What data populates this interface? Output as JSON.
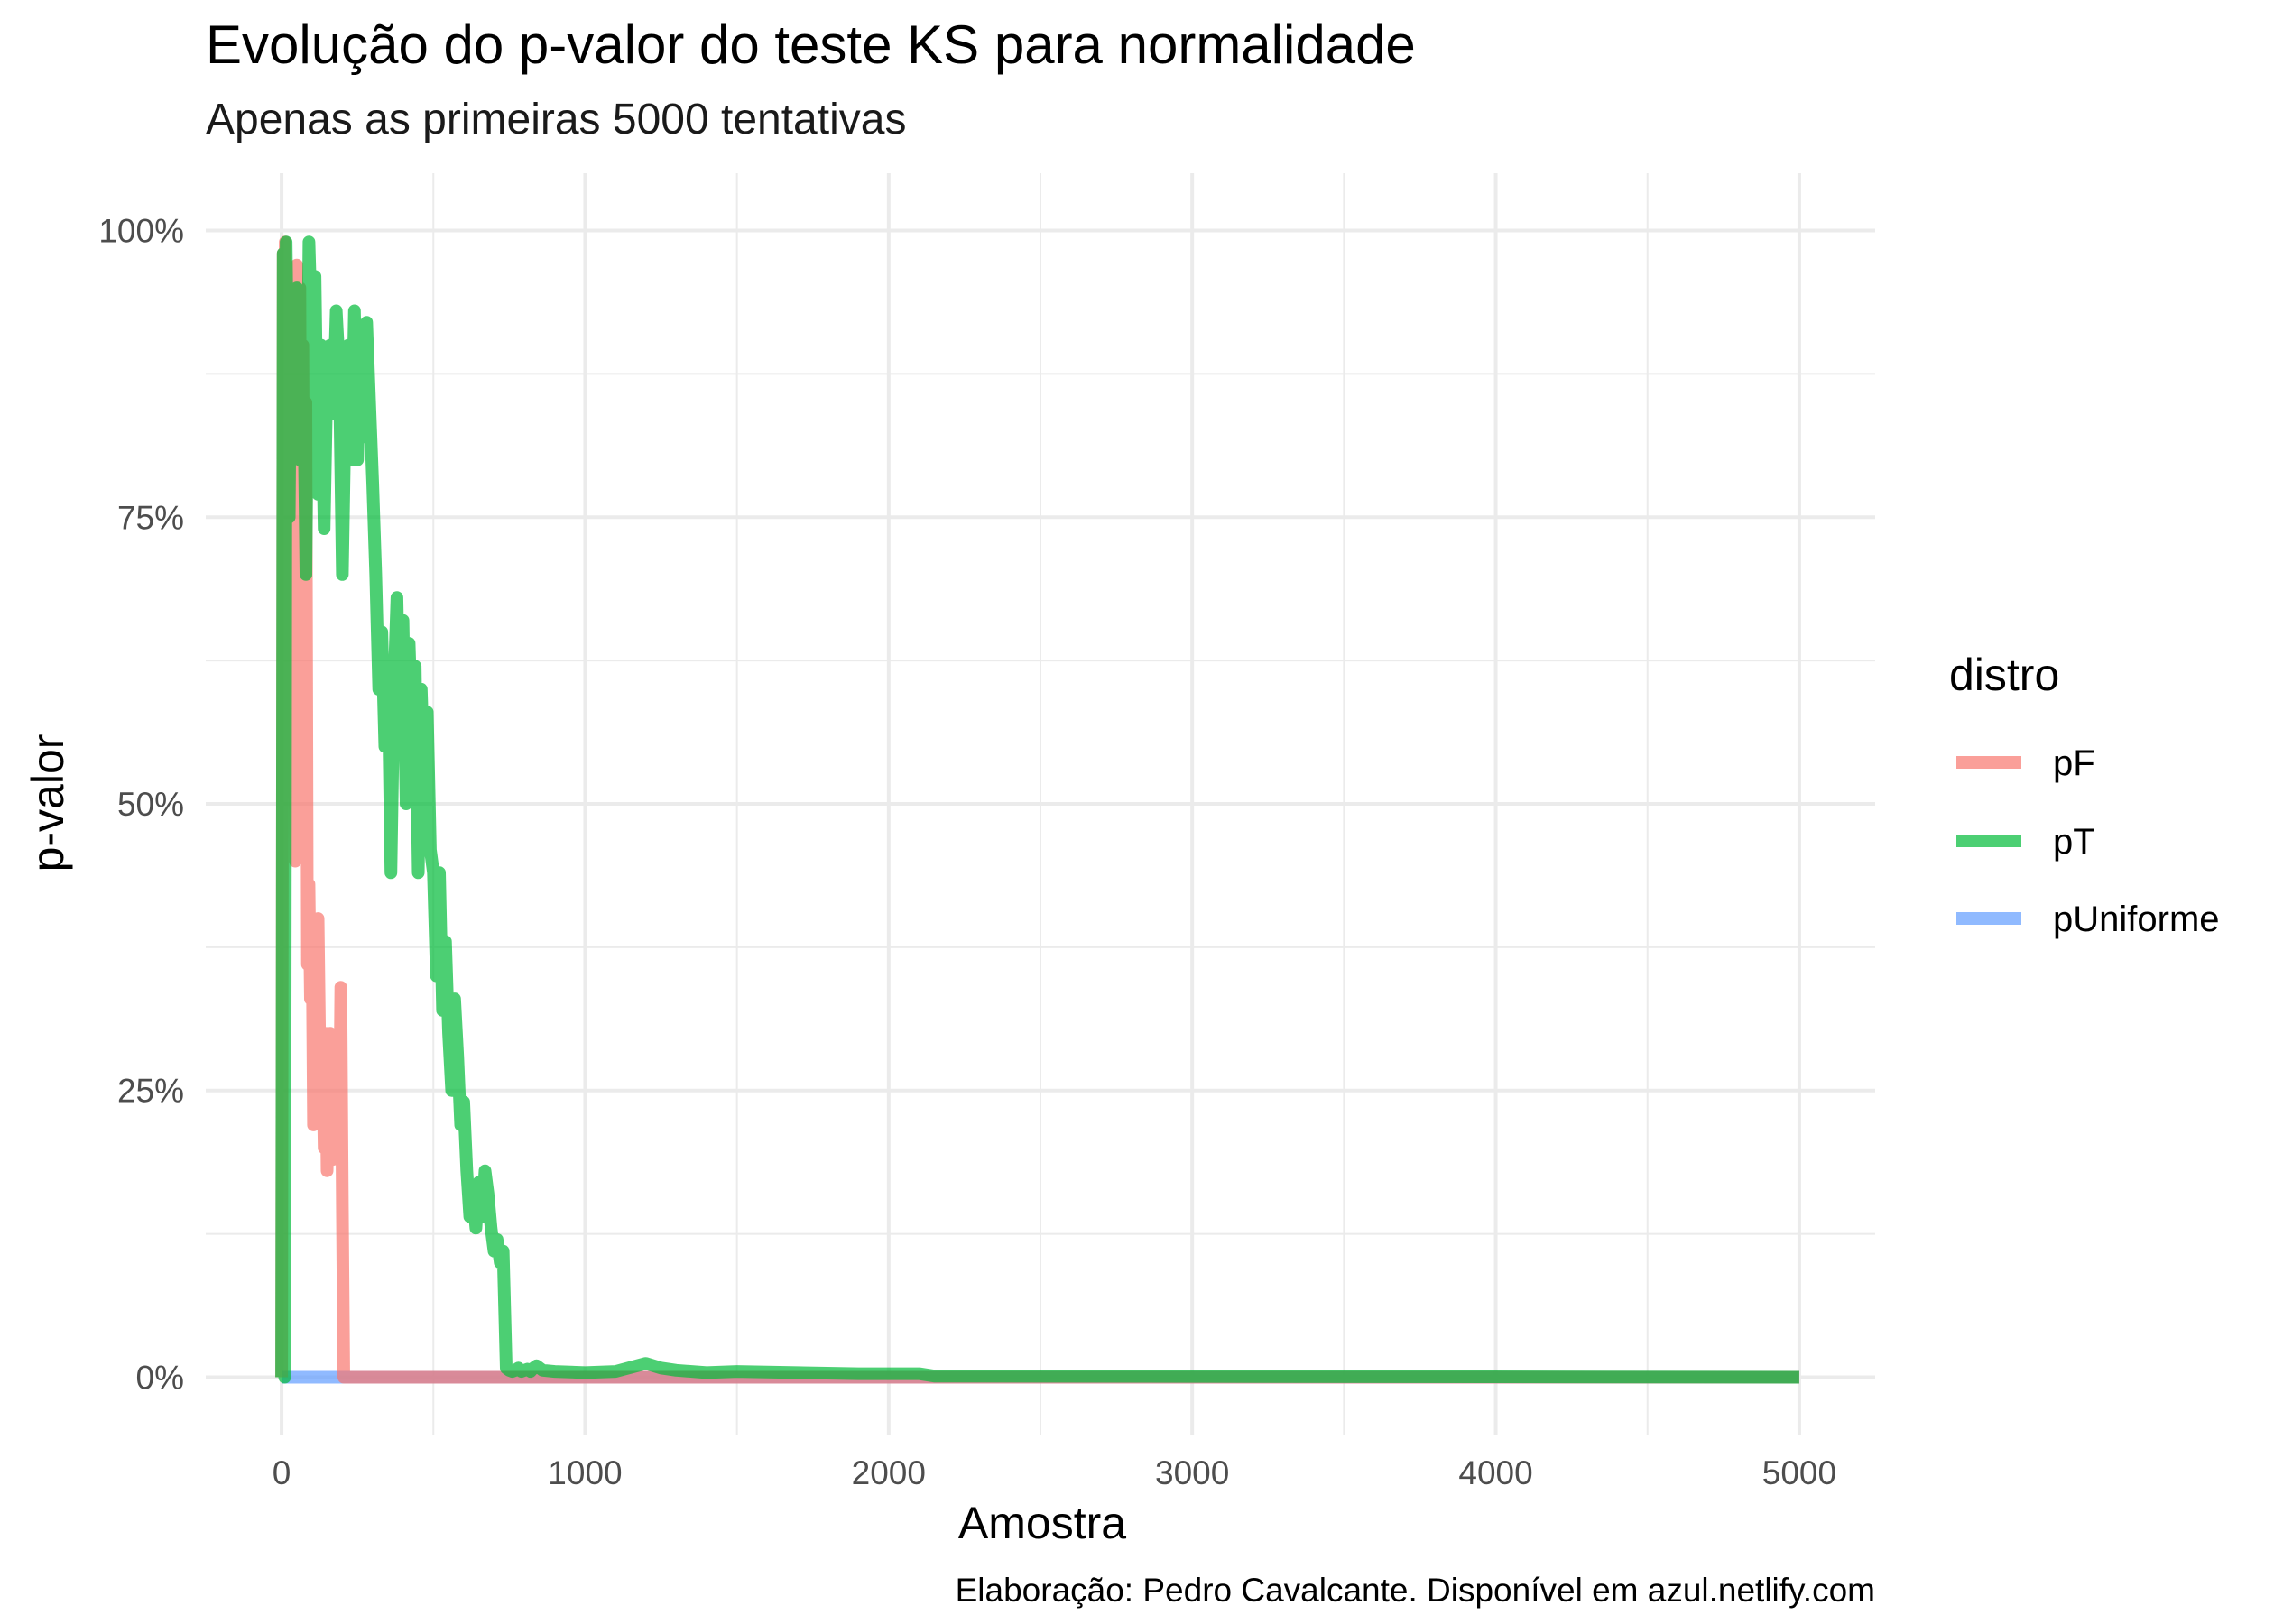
{
  "chart_data": {
    "type": "line",
    "title": "Evolução do p-valor do teste KS para normalidade",
    "subtitle": "Apenas as primeiras 5000 tentativas",
    "xlabel": "Amostra",
    "ylabel": "p-valor",
    "caption": "Elaboração: Pedro Cavalcante. Disponível em azul.netlify.com",
    "xlim": [
      0,
      5000
    ],
    "ylim": [
      0,
      1
    ],
    "x_ticks": [
      0,
      1000,
      2000,
      3000,
      4000,
      5000
    ],
    "x_tick_labels": [
      "0",
      "1000",
      "2000",
      "3000",
      "4000",
      "5000"
    ],
    "y_ticks": [
      0,
      0.25,
      0.5,
      0.75,
      1
    ],
    "y_tick_labels": [
      "0%",
      "25%",
      "50%",
      "75%",
      "100%"
    ],
    "grid": true,
    "legend": {
      "title": "distro",
      "position": "right"
    },
    "series": [
      {
        "name": "pF",
        "color": "#F8766D",
        "x": [
          0,
          5,
          8,
          12,
          15,
          20,
          25,
          30,
          35,
          40,
          45,
          50,
          55,
          60,
          65,
          70,
          75,
          80,
          85,
          90,
          95,
          100,
          105,
          110,
          115,
          120,
          125,
          130,
          135,
          140,
          145,
          150,
          160,
          170,
          180,
          190,
          195,
          200,
          205,
          210,
          5000
        ],
        "y": [
          0,
          0.98,
          0.85,
          0.99,
          0.9,
          0.95,
          0.8,
          0.92,
          0.76,
          0.88,
          0.45,
          0.97,
          0.6,
          0.95,
          0.58,
          0.9,
          0.55,
          0.85,
          0.36,
          0.43,
          0.33,
          0.4,
          0.22,
          0.38,
          0.25,
          0.4,
          0.3,
          0.22,
          0.28,
          0.2,
          0.3,
          0.18,
          0.3,
          0.19,
          0.22,
          0.2,
          0.34,
          0.15,
          0.0,
          0.0,
          0.0
        ]
      },
      {
        "name": "pT",
        "color": "#00BA38",
        "x": [
          0,
          5,
          10,
          15,
          20,
          25,
          30,
          40,
          50,
          60,
          70,
          80,
          90,
          100,
          110,
          120,
          130,
          140,
          150,
          160,
          170,
          180,
          190,
          200,
          210,
          220,
          230,
          240,
          250,
          260,
          270,
          280,
          290,
          300,
          310,
          320,
          330,
          340,
          350,
          360,
          370,
          380,
          390,
          400,
          410,
          420,
          430,
          440,
          450,
          460,
          470,
          480,
          490,
          500,
          510,
          520,
          530,
          540,
          550,
          560,
          570,
          580,
          590,
          600,
          610,
          620,
          630,
          640,
          650,
          660,
          670,
          680,
          690,
          700,
          710,
          720,
          730,
          740,
          750,
          760,
          770,
          780,
          790,
          800,
          810,
          820,
          830,
          840,
          850,
          860,
          900,
          1000,
          1100,
          1200,
          1250,
          1300,
          1400,
          1500,
          1700,
          1900,
          2100,
          2150,
          5000
        ],
        "y": [
          0,
          0.98,
          0.0,
          0.99,
          0.88,
          0.75,
          0.92,
          0.85,
          0.95,
          0.8,
          0.92,
          0.7,
          0.99,
          0.9,
          0.96,
          0.77,
          0.9,
          0.74,
          0.88,
          0.9,
          0.84,
          0.93,
          0.88,
          0.7,
          0.85,
          0.9,
          0.8,
          0.93,
          0.8,
          0.9,
          0.82,
          0.92,
          0.85,
          0.78,
          0.7,
          0.6,
          0.65,
          0.55,
          0.62,
          0.44,
          0.6,
          0.68,
          0.55,
          0.66,
          0.5,
          0.64,
          0.56,
          0.62,
          0.44,
          0.6,
          0.52,
          0.58,
          0.46,
          0.44,
          0.35,
          0.44,
          0.32,
          0.38,
          0.3,
          0.25,
          0.33,
          0.28,
          0.22,
          0.24,
          0.18,
          0.14,
          0.16,
          0.13,
          0.17,
          0.14,
          0.18,
          0.16,
          0.13,
          0.11,
          0.12,
          0.1,
          0.11,
          0.008,
          0.006,
          0.005,
          0.006,
          0.008,
          0.005,
          0.006,
          0.007,
          0.005,
          0.008,
          0.01,
          0.008,
          0.006,
          0.005,
          0.004,
          0.005,
          0.012,
          0.008,
          0.006,
          0.004,
          0.005,
          0.004,
          0.003,
          0.003,
          0.001,
          0.0
        ]
      },
      {
        "name": "pUniforme",
        "color": "#619CFF",
        "x": [
          0,
          5000
        ],
        "y": [
          0,
          0
        ]
      }
    ]
  }
}
